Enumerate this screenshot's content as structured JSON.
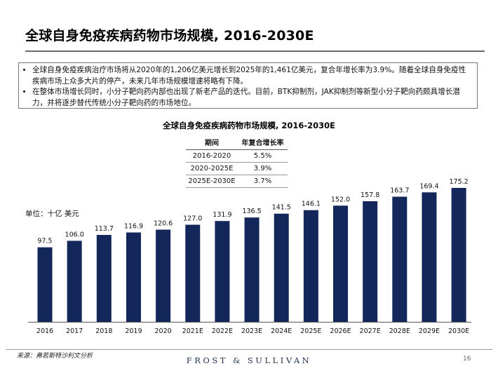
{
  "page": {
    "title": "全球自身免疫疾病药物市场规模, 2016-2030E",
    "bullets": [
      "全球自身免疫疾病治疗市场将从2020年的1,206亿美元增长到2025年的1,461亿美元，复合年增长率为3.9%。随着全球自身免疫性疾病市场上众多大片的停产，未来几年市场规模增速将略有下降。",
      "在整体市场增长同时，小分子靶向药内部也出现了新老产品的迭代。目前，BTK抑制剂，JAK抑制剂等新型小分子靶向药颇具增长潜力，并将逐步替代传统小分子靶向药的市场地位。"
    ],
    "source": "来源：弗若斯特沙利文分析",
    "brand": "FROST & SULLIVAN",
    "page_number": "16"
  },
  "cagr_table": {
    "headers": [
      "期间",
      "年复合增长率"
    ],
    "rows": [
      [
        "2016-2020",
        "5.5%"
      ],
      [
        "2020-2025E",
        "3.9%"
      ],
      [
        "2025E-2030E",
        "3.7%"
      ]
    ]
  },
  "chart_data": {
    "type": "bar",
    "title": "全球自身免疫疾病药物市场规模, 2016-2030E",
    "unit_label": "单位：十亿 美元",
    "categories": [
      "2016",
      "2017",
      "2018",
      "2019",
      "2020",
      "2021E",
      "2022E",
      "2023E",
      "2024E",
      "2025E",
      "2026E",
      "2027E",
      "2028E",
      "2029E",
      "2030E"
    ],
    "values": [
      97.5,
      106.0,
      113.7,
      116.9,
      120.6,
      127.0,
      131.9,
      136.5,
      141.5,
      146.1,
      152.0,
      157.8,
      163.7,
      169.4,
      175.2
    ],
    "value_labels": [
      "97.5",
      "106.0",
      "113.7",
      "116.9",
      "120.6",
      "127.0",
      "131.9",
      "136.5",
      "141.5",
      "146.1",
      "152.0",
      "157.8",
      "163.7",
      "169.4",
      "175.2"
    ],
    "bar_color": "#14275a",
    "xlabel": "",
    "ylabel": "",
    "ylim": [
      0,
      175.2
    ],
    "grid": false,
    "legend": "none"
  }
}
